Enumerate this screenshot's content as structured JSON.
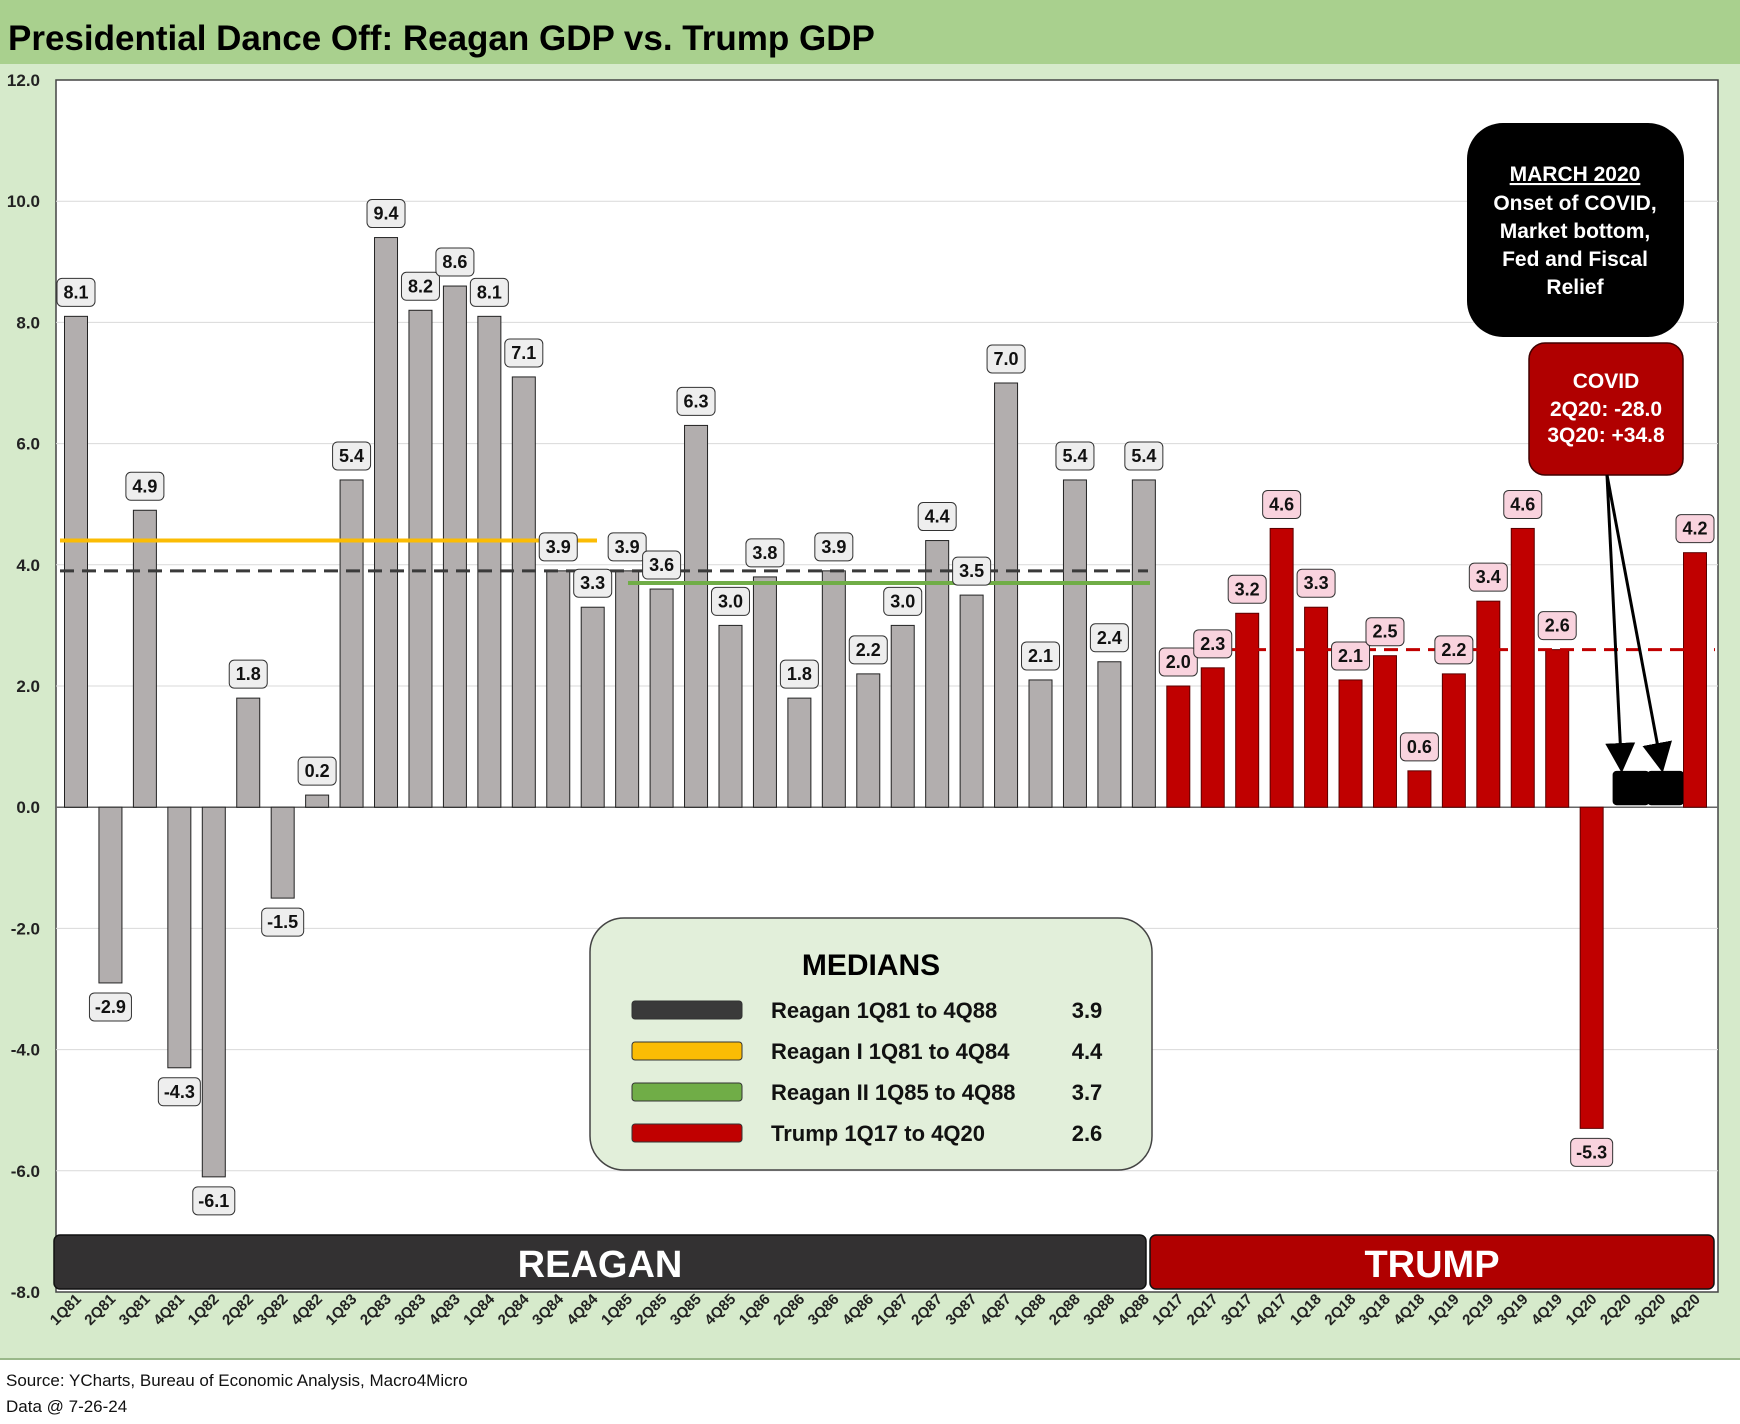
{
  "chart_data": {
    "type": "bar",
    "title": "Presidential Dance Off: Reagan GDP vs. Trump GDP",
    "ylim": [
      -8,
      12
    ],
    "yticks": [
      "12.0",
      "10.0",
      "8.0",
      "6.0",
      "4.0",
      "2.0",
      "0.0",
      "-2.0",
      "-4.0",
      "-6.0",
      "-8.0"
    ],
    "ytick_values": [
      12,
      10,
      8,
      6,
      4,
      2,
      0,
      -2,
      -4,
      -6,
      -8
    ],
    "grid": true,
    "categories": [
      "1Q81",
      "2Q81",
      "3Q81",
      "4Q81",
      "1Q82",
      "2Q82",
      "3Q82",
      "4Q82",
      "1Q83",
      "2Q83",
      "3Q83",
      "4Q83",
      "1Q84",
      "2Q84",
      "3Q84",
      "4Q84",
      "1Q85",
      "2Q85",
      "3Q85",
      "4Q85",
      "1Q86",
      "2Q86",
      "3Q86",
      "4Q86",
      "1Q87",
      "2Q87",
      "3Q87",
      "4Q87",
      "1Q88",
      "2Q88",
      "3Q88",
      "4Q88",
      "1Q17",
      "2Q17",
      "3Q17",
      "4Q17",
      "1Q18",
      "2Q18",
      "3Q18",
      "4Q18",
      "1Q19",
      "2Q19",
      "3Q19",
      "4Q19",
      "1Q20",
      "2Q20",
      "3Q20",
      "4Q20"
    ],
    "values": [
      8.1,
      -2.9,
      4.9,
      -4.3,
      -6.1,
      1.8,
      -1.5,
      0.2,
      5.4,
      9.4,
      8.2,
      8.6,
      8.1,
      7.1,
      3.9,
      3.3,
      3.9,
      3.6,
      6.3,
      3.0,
      3.8,
      1.8,
      3.9,
      2.2,
      3.0,
      4.4,
      3.5,
      7.0,
      2.1,
      5.4,
      2.4,
      5.4,
      2.0,
      2.3,
      3.2,
      4.6,
      3.3,
      2.1,
      2.5,
      0.6,
      2.2,
      3.4,
      4.6,
      2.6,
      -5.3,
      null,
      null,
      4.2
    ],
    "value_labels": [
      "8.1",
      "-2.9",
      "4.9",
      "-4.3",
      "-6.1",
      "1.8",
      "-1.5",
      "0.2",
      "5.4",
      "9.4",
      "8.2",
      "8.6",
      "8.1",
      "7.1",
      "3.9",
      "3.3",
      "3.9",
      "3.6",
      "6.3",
      "3.0",
      "3.8",
      "1.8",
      "3.9",
      "2.2",
      "3.0",
      "4.4",
      "3.5",
      "7.0",
      "2.1",
      "5.4",
      "2.4",
      "5.4",
      "2.0",
      "2.3",
      "3.2",
      "4.6",
      "3.3",
      "2.1",
      "2.5",
      "0.6",
      "2.2",
      "3.4",
      "4.6",
      "2.6",
      "-5.3",
      "",
      "",
      "4.2"
    ],
    "bar_colors": {
      "reagan": "#b2aeae",
      "trump": "#c00000",
      "off_scale": "#000000"
    },
    "medians": {
      "title": "MEDIANS",
      "lines": [
        {
          "name": "Reagan 1Q81 to 4Q88",
          "value": 3.9,
          "value_label": "3.9",
          "color": "#3a3a3a",
          "style": "dashed",
          "from": "1Q81",
          "to": "4Q88"
        },
        {
          "name": "Reagan I 1Q81 to 4Q84",
          "value": 4.4,
          "value_label": "4.4",
          "color": "#fbbc04",
          "style": "solid",
          "from": "1Q81",
          "to": "4Q84"
        },
        {
          "name": "Reagan II 1Q85 to 4Q88",
          "value": 3.7,
          "value_label": "3.7",
          "color": "#70ad47",
          "style": "solid",
          "from": "1Q85",
          "to": "4Q88"
        },
        {
          "name": "Trump 1Q17 to 4Q20",
          "value": 2.6,
          "value_label": "2.6",
          "color": "#c00000",
          "style": "dashed",
          "from": "1Q17",
          "to": "4Q20"
        }
      ]
    },
    "annotations": {
      "march_2020": {
        "header": "MARCH 2020",
        "lines": [
          "Onset of COVID,",
          "Market bottom,",
          "Fed and Fiscal",
          "Relief"
        ]
      },
      "covid": {
        "lines": [
          "COVID",
          "2Q20: -28.0",
          "3Q20: +34.8"
        ]
      }
    },
    "bands": [
      {
        "label": "REAGAN",
        "from": "1Q81",
        "to": "4Q88",
        "color": "#333132"
      },
      {
        "label": "TRUMP",
        "from": "1Q17",
        "to": "4Q20",
        "color": "#b00000"
      }
    ]
  },
  "footer": {
    "source": "Source: YCharts, Bureau of Economic Analysis, Macro4Micro",
    "data_date": "Data @ 7-26-24"
  },
  "colors": {
    "frame_green": "#a9d08e",
    "legend_bg": "#e2efda"
  }
}
